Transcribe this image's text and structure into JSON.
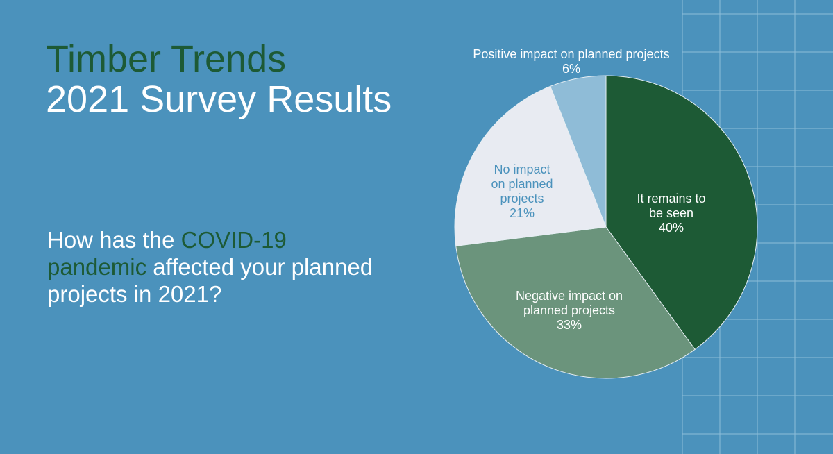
{
  "title": {
    "line1": "Timber Trends",
    "line2": "2021 Survey Results"
  },
  "question": {
    "before": "How has the ",
    "highlight": "COVID-19 pandemic",
    "after": " affected your planned projects in 2021?"
  },
  "colors": {
    "background": "#4b92bc",
    "grid_lines": "#8cbdd9",
    "title_accent": "#1d5a35",
    "question_text": "#ffffff",
    "slice_it_remains": "#1d5a35",
    "slice_negative": "#6b947c",
    "slice_no_impact": "#e8ebf2",
    "slice_positive": "#8fbcd7",
    "label_light": "#ffffff",
    "label_blue": "#4b92bc"
  },
  "chart_data": {
    "type": "pie",
    "start_angle_deg": 0,
    "direction": "clockwise",
    "slices": [
      {
        "label_lines": [
          "It remains to",
          "be seen"
        ],
        "value": 40,
        "value_label": "40%",
        "color": "#1d5a35",
        "label_color": "#ffffff"
      },
      {
        "label_lines": [
          "Negative impact on",
          "planned projects"
        ],
        "value": 33,
        "value_label": "33%",
        "color": "#6b947c",
        "label_color": "#ffffff"
      },
      {
        "label_lines": [
          "No impact",
          "on planned",
          "projects"
        ],
        "value": 21,
        "value_label": "21%",
        "color": "#e8ebf2",
        "label_color": "#4b92bc"
      },
      {
        "label_lines": [
          "Positive impact on planned projects"
        ],
        "value": 6,
        "value_label": "6%",
        "color": "#8fbcd7",
        "label_color": "#ffffff"
      }
    ]
  }
}
